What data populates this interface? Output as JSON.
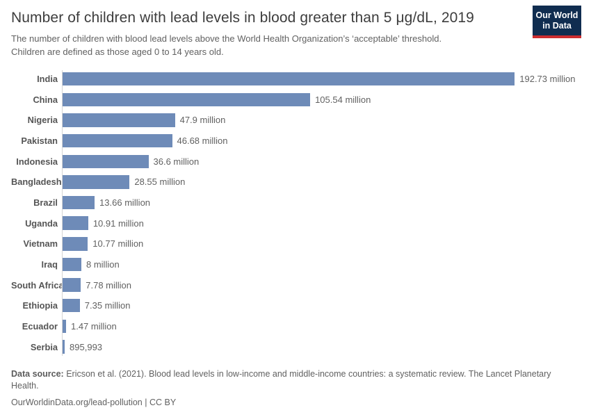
{
  "header": {
    "title": "Number of children with lead levels in blood greater than 5 μg/dL, 2019",
    "subtitle": "The number of children with blood lead levels above the World Health Organization’s ‘acceptable’ threshold. Children are defined as those aged 0 to 14 years old.",
    "logo": {
      "line1": "Our World",
      "line2": "in Data"
    }
  },
  "chart_data": {
    "type": "bar",
    "orientation": "horizontal",
    "title": "Number of children with lead levels in blood greater than 5 μg/dL, 2019",
    "unit": "million children",
    "xlim": [
      0,
      200
    ],
    "grid": false,
    "legend": "none",
    "categories": [
      "India",
      "China",
      "Nigeria",
      "Pakistan",
      "Indonesia",
      "Bangladesh",
      "Brazil",
      "Uganda",
      "Vietnam",
      "Iraq",
      "South Africa",
      "Ethiopia",
      "Ecuador",
      "Serbia"
    ],
    "values": [
      192.73,
      105.54,
      47.9,
      46.68,
      36.6,
      28.55,
      13.66,
      10.91,
      10.77,
      8,
      7.78,
      7.35,
      1.47,
      0.895993
    ],
    "value_labels": [
      "192.73 million",
      "105.54 million",
      "47.9 million",
      "46.68 million",
      "36.6 million",
      "28.55 million",
      "13.66 million",
      "10.91 million",
      "10.77 million",
      "8 million",
      "7.78 million",
      "7.35 million",
      "1.47 million",
      "895,993"
    ]
  },
  "footer": {
    "datasource_label": "Data source:",
    "datasource_text": " Ericson et al. (2021). Blood lead levels in low-income and middle-income countries: a systematic review. The Lancet Planetary Health.",
    "link_text": "OurWorldinData.org/lead-pollution | CC BY"
  },
  "colors": {
    "bar": "#6e8bb8",
    "logo_navy": "#102d50",
    "logo_red": "#cc2d30",
    "axis_line": "#d4d4d4"
  }
}
